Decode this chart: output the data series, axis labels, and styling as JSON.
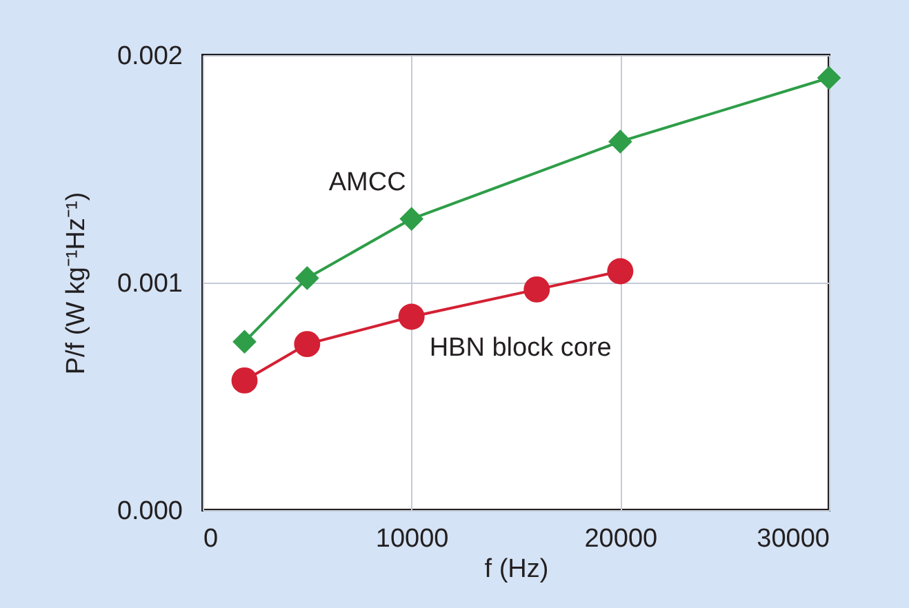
{
  "chart_data": {
    "type": "line",
    "xlabel": "f (Hz)",
    "ylabel": "P/f (W kg⁻¹Hz⁻¹)",
    "x": [
      2000,
      5000,
      10000,
      20000,
      30000
    ],
    "series": [
      {
        "name": "AMCC",
        "color": "#2e9e48",
        "marker": "diamond",
        "values": [
          0.00074,
          0.00102,
          0.00128,
          0.00162,
          0.0019
        ]
      },
      {
        "name": "HBN block core",
        "color": "#d42034",
        "marker": "circle",
        "x": [
          2000,
          5000,
          10000,
          16000,
          20000
        ],
        "values": [
          0.00057,
          0.00073,
          0.00085,
          0.00097,
          0.00105
        ]
      }
    ],
    "xlim": [
      0,
      30000
    ],
    "ylim": [
      0,
      0.002
    ],
    "xticks": [
      0,
      10000,
      20000,
      30000
    ],
    "yticks": [
      {
        "value": 0,
        "label": "0.000"
      },
      0.001,
      0.002
    ],
    "grid": true,
    "legend": false,
    "line_style": "solid"
  }
}
